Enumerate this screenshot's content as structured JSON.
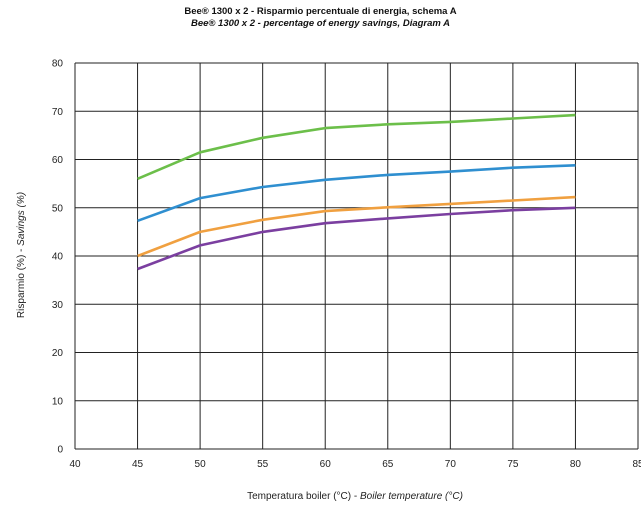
{
  "chart_data": {
    "type": "line",
    "title": {
      "line1": "Bee® 1300 x 2 - Risparmio percentuale di energia, schema A",
      "line2": "Bee® 1300 x 2 - percentage of energy savings, Diagram A"
    },
    "xlabel": {
      "main": "Temperatura boiler (°C) - ",
      "italic": "Boiler temperature (°C)"
    },
    "ylabel": {
      "main": "Risparmio (%) - ",
      "italic": "Savings (%)"
    },
    "xlim": [
      40,
      85
    ],
    "ylim": [
      0,
      80
    ],
    "x_ticks": [
      "40",
      "45",
      "50",
      "55",
      "60",
      "65",
      "70",
      "75",
      "80",
      "85"
    ],
    "y_ticks": [
      "0",
      "10",
      "20",
      "30",
      "40",
      "50",
      "60",
      "70",
      "80"
    ],
    "grid": true,
    "x": [
      45,
      50,
      55,
      60,
      65,
      70,
      75,
      80
    ],
    "series": [
      {
        "color": "#6cbf4a",
        "values": [
          56,
          61.5,
          64.5,
          66.5,
          67.3,
          67.8,
          68.5,
          69.2
        ]
      },
      {
        "color": "#2f8fd0",
        "values": [
          47.3,
          52,
          54.3,
          55.8,
          56.8,
          57.5,
          58.3,
          58.8
        ]
      },
      {
        "color": "#f0a040",
        "values": [
          40,
          45,
          47.5,
          49.3,
          50.1,
          50.8,
          51.5,
          52.2
        ]
      },
      {
        "color": "#7b3fa0",
        "values": [
          37.3,
          42.2,
          45,
          46.8,
          47.8,
          48.7,
          49.5,
          50
        ]
      }
    ]
  }
}
